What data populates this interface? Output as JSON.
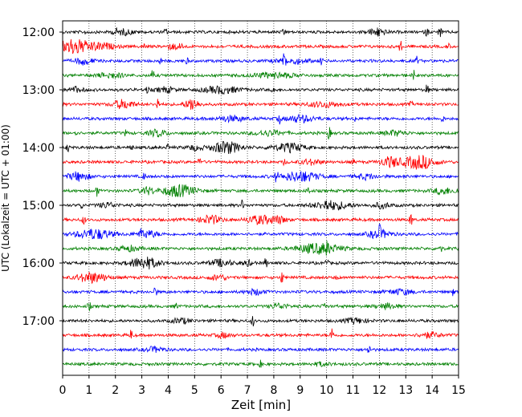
{
  "chart_data": {
    "type": "line",
    "title": "",
    "xlabel": "Zeit  [min]",
    "ylabel": "UTC (Lokalzeit = UTC + 01:00)",
    "xlim": [
      0,
      15
    ],
    "x_ticks": [
      0,
      1,
      2,
      3,
      4,
      5,
      6,
      7,
      8,
      9,
      10,
      11,
      12,
      13,
      14,
      15
    ],
    "x_tick_labels": [
      "0",
      "1",
      "2",
      "3",
      "4",
      "5",
      "6",
      "7",
      "8",
      "9",
      "10",
      "11",
      "12",
      "13",
      "14",
      "15"
    ],
    "y_tick_labels": [
      "12:00",
      "13:00",
      "14:00",
      "15:00",
      "16:00",
      "17:00"
    ],
    "trace_interval_minutes": 15,
    "grid_x": true,
    "grid_style": "dotted",
    "colors": [
      "#000000",
      "#ff0000",
      "#0000ff",
      "#008000"
    ],
    "series": [
      {
        "start": "12:00",
        "color": "#000000",
        "events": [
          {
            "x": 0.9,
            "a": 3
          },
          {
            "x": 2.0,
            "a": 3
          },
          {
            "x": 3.9,
            "a": 4
          },
          {
            "x": 8.4,
            "a": 6
          },
          {
            "x": 12.0,
            "a": 3
          },
          {
            "x": 13.8,
            "a": 6
          },
          {
            "x": 14.3,
            "a": 9
          }
        ],
        "bursts": [
          {
            "x": 2.3,
            "w": 0.6,
            "a": 3
          },
          {
            "x": 11.9,
            "w": 0.5,
            "a": 4
          }
        ]
      },
      {
        "start": "12:15",
        "color": "#ff0000",
        "events": [
          {
            "x": 3.1,
            "a": 4
          },
          {
            "x": 4.5,
            "a": 5
          },
          {
            "x": 12.8,
            "a": 7
          },
          {
            "x": 14.6,
            "a": 4
          }
        ],
        "bursts": [
          {
            "x": 0.4,
            "w": 0.8,
            "a": 9
          },
          {
            "x": 1.4,
            "w": 0.8,
            "a": 4
          },
          {
            "x": 4.2,
            "w": 0.4,
            "a": 3
          }
        ]
      },
      {
        "start": "12:30",
        "color": "#0000ff",
        "events": [
          {
            "x": 3.7,
            "a": 4
          },
          {
            "x": 4.7,
            "a": 4
          },
          {
            "x": 8.4,
            "a": 9
          },
          {
            "x": 9.8,
            "a": 4
          },
          {
            "x": 13.4,
            "a": 6
          }
        ],
        "bursts": [
          {
            "x": 0.8,
            "w": 0.5,
            "a": 4
          },
          {
            "x": 8.7,
            "w": 0.9,
            "a": 3
          }
        ]
      },
      {
        "start": "12:45",
        "color": "#008000",
        "events": [
          {
            "x": 3.4,
            "a": 7
          },
          {
            "x": 13.3,
            "a": 6
          }
        ],
        "bursts": [
          {
            "x": 1.8,
            "w": 0.7,
            "a": 3
          },
          {
            "x": 8.0,
            "w": 1.2,
            "a": 3
          }
        ]
      },
      {
        "start": "13:00",
        "color": "#000000",
        "events": [
          {
            "x": 3.2,
            "a": 4
          },
          {
            "x": 8.0,
            "a": 5
          },
          {
            "x": 13.8,
            "a": 7
          }
        ],
        "bursts": [
          {
            "x": 0.5,
            "w": 0.4,
            "a": 3
          },
          {
            "x": 3.9,
            "w": 0.5,
            "a": 3
          },
          {
            "x": 6.0,
            "w": 1.0,
            "a": 4
          }
        ]
      },
      {
        "start": "13:15",
        "color": "#ff0000",
        "events": [
          {
            "x": 3.6,
            "a": 8
          },
          {
            "x": 4.9,
            "a": 5
          },
          {
            "x": 13.2,
            "a": 3
          }
        ],
        "bursts": [
          {
            "x": 2.3,
            "w": 0.6,
            "a": 5
          },
          {
            "x": 4.9,
            "w": 0.4,
            "a": 6
          },
          {
            "x": 9.9,
            "w": 1.0,
            "a": 3
          }
        ]
      },
      {
        "start": "13:30",
        "color": "#0000ff",
        "events": [
          {
            "x": 8.2,
            "a": 7
          },
          {
            "x": 11.1,
            "a": 4
          },
          {
            "x": 14.4,
            "a": 4
          }
        ],
        "bursts": [
          {
            "x": 6.4,
            "w": 0.8,
            "a": 3
          },
          {
            "x": 9.0,
            "w": 0.8,
            "a": 4
          }
        ]
      },
      {
        "start": "13:45",
        "color": "#008000",
        "events": [
          {
            "x": 0.5,
            "a": 4
          },
          {
            "x": 2.4,
            "a": 4
          },
          {
            "x": 10.1,
            "a": 9
          }
        ],
        "bursts": [
          {
            "x": 3.6,
            "w": 0.5,
            "a": 4
          },
          {
            "x": 7.8,
            "w": 0.8,
            "a": 3
          },
          {
            "x": 12.6,
            "w": 0.6,
            "a": 3
          }
        ]
      },
      {
        "start": "14:00",
        "color": "#000000",
        "events": [
          {
            "x": 0.2,
            "a": 5
          },
          {
            "x": 2.6,
            "a": 5
          },
          {
            "x": 4.0,
            "a": 4
          },
          {
            "x": 7.9,
            "a": 7
          }
        ],
        "bursts": [
          {
            "x": 6.2,
            "w": 0.8,
            "a": 7
          },
          {
            "x": 8.6,
            "w": 0.8,
            "a": 5
          },
          {
            "x": 5.0,
            "w": 0.4,
            "a": 3
          }
        ]
      },
      {
        "start": "14:15",
        "color": "#ff0000",
        "events": [
          {
            "x": 5.2,
            "a": 7
          },
          {
            "x": 8.4,
            "a": 4
          },
          {
            "x": 11.0,
            "a": 3
          }
        ],
        "bursts": [
          {
            "x": 12.4,
            "w": 0.5,
            "a": 6
          },
          {
            "x": 13.5,
            "w": 0.9,
            "a": 8
          },
          {
            "x": 9.4,
            "w": 0.6,
            "a": 3
          }
        ]
      },
      {
        "start": "14:30",
        "color": "#0000ff",
        "events": [
          {
            "x": 3.1,
            "a": 5
          },
          {
            "x": 8.1,
            "a": 7
          },
          {
            "x": 13.0,
            "a": 4
          }
        ],
        "bursts": [
          {
            "x": 0.6,
            "w": 0.6,
            "a": 5
          },
          {
            "x": 9.0,
            "w": 1.0,
            "a": 6
          },
          {
            "x": 11.5,
            "w": 0.6,
            "a": 3
          }
        ]
      },
      {
        "start": "14:45",
        "color": "#008000",
        "events": [
          {
            "x": 1.3,
            "a": 7
          },
          {
            "x": 9.3,
            "a": 6
          },
          {
            "x": 14.9,
            "a": 4
          }
        ],
        "bursts": [
          {
            "x": 4.4,
            "w": 0.9,
            "a": 7
          },
          {
            "x": 3.2,
            "w": 0.4,
            "a": 4
          },
          {
            "x": 14.4,
            "w": 0.5,
            "a": 4
          }
        ]
      },
      {
        "start": "15:00",
        "color": "#000000",
        "events": [
          {
            "x": 0.7,
            "a": 5
          },
          {
            "x": 6.8,
            "a": 6
          },
          {
            "x": 10.0,
            "a": 4
          }
        ],
        "bursts": [
          {
            "x": 1.7,
            "w": 0.5,
            "a": 3
          },
          {
            "x": 10.2,
            "w": 1.0,
            "a": 5
          },
          {
            "x": 12.1,
            "w": 0.5,
            "a": 3
          }
        ]
      },
      {
        "start": "15:15",
        "color": "#ff0000",
        "events": [
          {
            "x": 0.8,
            "a": 6
          },
          {
            "x": 13.2,
            "a": 9
          },
          {
            "x": 7.1,
            "a": 4
          }
        ],
        "bursts": [
          {
            "x": 5.6,
            "w": 0.6,
            "a": 5
          },
          {
            "x": 7.5,
            "w": 0.7,
            "a": 5
          },
          {
            "x": 8.2,
            "w": 0.4,
            "a": 4
          }
        ]
      },
      {
        "start": "15:30",
        "color": "#0000ff",
        "events": [
          {
            "x": 3.0,
            "a": 5
          },
          {
            "x": 12.0,
            "a": 7
          }
        ],
        "bursts": [
          {
            "x": 1.2,
            "w": 1.0,
            "a": 6
          },
          {
            "x": 3.2,
            "w": 0.6,
            "a": 4
          },
          {
            "x": 12.0,
            "w": 0.6,
            "a": 5
          }
        ]
      },
      {
        "start": "15:45",
        "color": "#008000",
        "events": [
          {
            "x": 10.0,
            "a": 5
          },
          {
            "x": 14.3,
            "a": 8
          }
        ],
        "bursts": [
          {
            "x": 9.7,
            "w": 1.2,
            "a": 6
          },
          {
            "x": 2.5,
            "w": 0.6,
            "a": 3
          }
        ]
      },
      {
        "start": "16:00",
        "color": "#000000",
        "events": [
          {
            "x": 7.7,
            "a": 7
          },
          {
            "x": 10.0,
            "a": 5
          }
        ],
        "bursts": [
          {
            "x": 3.1,
            "w": 0.8,
            "a": 7
          },
          {
            "x": 6.0,
            "w": 0.6,
            "a": 4
          },
          {
            "x": 7.0,
            "w": 0.3,
            "a": 3
          }
        ]
      },
      {
        "start": "16:15",
        "color": "#ff0000",
        "events": [
          {
            "x": 8.3,
            "a": 8
          },
          {
            "x": 10.4,
            "a": 3
          }
        ],
        "bursts": [
          {
            "x": 1.1,
            "w": 0.8,
            "a": 6
          },
          {
            "x": 5.9,
            "w": 0.5,
            "a": 3
          }
        ]
      },
      {
        "start": "16:30",
        "color": "#0000ff",
        "events": [
          {
            "x": 3.5,
            "a": 8
          },
          {
            "x": 14.8,
            "a": 5
          }
        ],
        "bursts": [
          {
            "x": 12.8,
            "w": 0.7,
            "a": 3
          },
          {
            "x": 7.3,
            "w": 0.5,
            "a": 3
          }
        ]
      },
      {
        "start": "16:45",
        "color": "#008000",
        "events": [
          {
            "x": 1.0,
            "a": 6
          },
          {
            "x": 4.3,
            "a": 4
          },
          {
            "x": 9.9,
            "a": 6
          }
        ],
        "bursts": [
          {
            "x": 8.2,
            "w": 0.5,
            "a": 3
          },
          {
            "x": 12.3,
            "w": 0.6,
            "a": 3
          }
        ]
      },
      {
        "start": "17:00",
        "color": "#000000",
        "events": [
          {
            "x": 7.2,
            "a": 7
          }
        ],
        "bursts": [
          {
            "x": 4.5,
            "w": 0.5,
            "a": 3
          },
          {
            "x": 11.1,
            "w": 0.6,
            "a": 3
          }
        ]
      },
      {
        "start": "17:15",
        "color": "#ff0000",
        "events": [
          {
            "x": 2.6,
            "a": 8
          },
          {
            "x": 10.2,
            "a": 9
          }
        ],
        "bursts": [
          {
            "x": 13.9,
            "w": 0.6,
            "a": 3
          },
          {
            "x": 6.1,
            "w": 0.4,
            "a": 3
          }
        ]
      },
      {
        "start": "17:30",
        "color": "#0000ff",
        "events": [
          {
            "x": 11.6,
            "a": 7
          }
        ],
        "bursts": [
          {
            "x": 3.5,
            "w": 0.5,
            "a": 3
          }
        ]
      },
      {
        "start": "17:45",
        "color": "#008000",
        "events": [
          {
            "x": 7.5,
            "a": 4
          }
        ],
        "bursts": [
          {
            "x": 9.8,
            "w": 0.5,
            "a": 2
          }
        ]
      }
    ]
  }
}
